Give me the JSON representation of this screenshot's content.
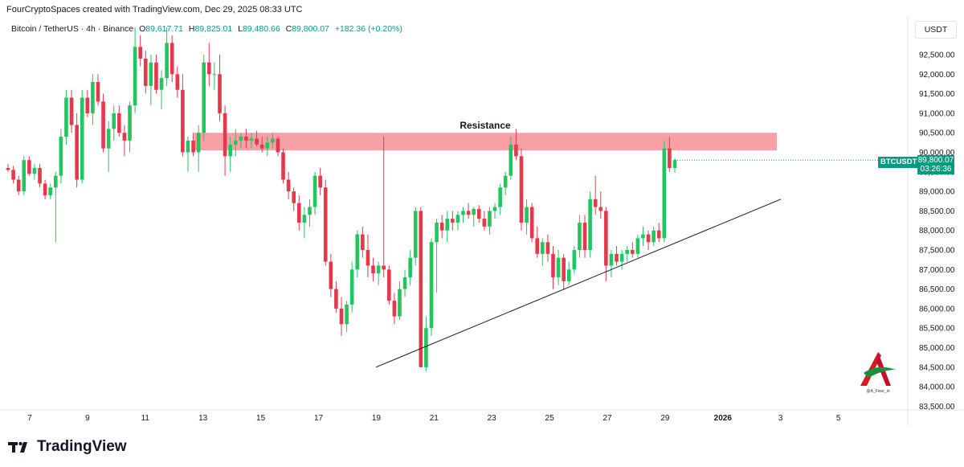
{
  "header": {
    "attribution": "FourCryptoSpaces created with TradingView.com, Dec 29, 2025 08:33 UTC"
  },
  "legend": {
    "symbol": "Bitcoin / TetherUS · 4h · Binance",
    "open_label": "O",
    "open": "89,617.71",
    "high_label": "H",
    "high": "89,825.01",
    "low_label": "L",
    "low": "89,480.66",
    "close_label": "C",
    "close": "89,800.07",
    "change": "+182.36 (+0.20%)"
  },
  "currency": "USDT",
  "price_tag": {
    "symbol": "BTCUSDT",
    "price": "89,800.07",
    "countdown": "03:26:36"
  },
  "brand": {
    "name": "TradingView"
  },
  "watermark": {
    "handle": "@A_Fixer_in"
  },
  "colors": {
    "up": "#089981",
    "down": "#f23645",
    "up_candle": "#22c55e",
    "down_candle": "#e5384b",
    "resistance": "#f7a1a6"
  },
  "chart_data": {
    "type": "candlestick",
    "yaxis_labels": [
      "92,500.00",
      "92,000.00",
      "91,500.00",
      "91,000.00",
      "90,500.00",
      "90,000.00",
      "89,500.00",
      "89,000.00",
      "88,500.00",
      "88,000.00",
      "87,500.00",
      "87,000.00",
      "86,500.00",
      "86,000.00",
      "85,500.00",
      "85,000.00",
      "84,500.00",
      "84,000.00",
      "83,500.00"
    ],
    "ylim": [
      83500,
      92800
    ],
    "xaxis_labels": [
      "7",
      "9",
      "11",
      "13",
      "15",
      "17",
      "19",
      "21",
      "23",
      "25",
      "27",
      "29",
      "2026",
      "3",
      "5"
    ],
    "annotations": [
      {
        "type": "zone",
        "label": "Resistance",
        "from": 90050,
        "to": 90500
      },
      {
        "type": "trendline",
        "start": [
          84500,
          "Dec 18"
        ],
        "end": [
          88800,
          "Jan 1"
        ]
      }
    ],
    "candles": [
      [
        89600,
        89700,
        89500,
        89550
      ],
      [
        89550,
        89650,
        89200,
        89300
      ],
      [
        89300,
        89400,
        88900,
        89000
      ],
      [
        89000,
        89900,
        88900,
        89800
      ],
      [
        89800,
        89900,
        89400,
        89450
      ],
      [
        89450,
        89700,
        89300,
        89600
      ],
      [
        89600,
        89700,
        89100,
        89200
      ],
      [
        89200,
        89300,
        88800,
        88900
      ],
      [
        88900,
        89200,
        88800,
        89100
      ],
      [
        89100,
        89500,
        87700,
        89400
      ],
      [
        89400,
        90600,
        89200,
        90400
      ],
      [
        90400,
        91600,
        90200,
        91400
      ],
      [
        91400,
        91600,
        90500,
        90700
      ],
      [
        90700,
        91000,
        89100,
        89300
      ],
      [
        89300,
        91600,
        89200,
        91400
      ],
      [
        91400,
        91600,
        90900,
        91000
      ],
      [
        91000,
        92000,
        90700,
        91800
      ],
      [
        91800,
        92000,
        91200,
        91300
      ],
      [
        91300,
        91500,
        90000,
        90100
      ],
      [
        90100,
        90800,
        89500,
        90600
      ],
      [
        90600,
        91200,
        90300,
        91000
      ],
      [
        91000,
        91200,
        90400,
        90500
      ],
      [
        90500,
        90700,
        89900,
        90300
      ],
      [
        90300,
        91300,
        90000,
        91200
      ],
      [
        91200,
        93200,
        91000,
        92700
      ],
      [
        92700,
        93000,
        92200,
        92400
      ],
      [
        92400,
        92600,
        91500,
        91700
      ],
      [
        91700,
        92500,
        91200,
        92300
      ],
      [
        92300,
        92500,
        91500,
        91600
      ],
      [
        91600,
        92100,
        91100,
        91900
      ],
      [
        91900,
        93200,
        91700,
        92800
      ],
      [
        92800,
        93000,
        91800,
        92000
      ],
      [
        92000,
        92200,
        91400,
        91600
      ],
      [
        91600,
        92000,
        89900,
        90000
      ],
      [
        90000,
        90400,
        89500,
        90300
      ],
      [
        90300,
        90500,
        89900,
        90000
      ],
      [
        90000,
        90700,
        89500,
        90500
      ],
      [
        90500,
        92500,
        90300,
        92300
      ],
      [
        92300,
        92800,
        91700,
        92000
      ],
      [
        92000,
        92300,
        91600,
        92000
      ],
      [
        92000,
        92500,
        90800,
        91000
      ],
      [
        91000,
        91200,
        89400,
        89900
      ],
      [
        89900,
        90400,
        89500,
        90200
      ],
      [
        90200,
        90600,
        89900,
        90300
      ],
      [
        90300,
        90500,
        90100,
        90400
      ],
      [
        90400,
        90600,
        90100,
        90300
      ],
      [
        90300,
        90500,
        90100,
        90350
      ],
      [
        90350,
        90550,
        90150,
        90200
      ],
      [
        90200,
        90400,
        90000,
        90100
      ],
      [
        90100,
        90400,
        89900,
        90250
      ],
      [
        90250,
        90500,
        90100,
        90350
      ],
      [
        90350,
        90400,
        89900,
        90000
      ],
      [
        90000,
        90100,
        89200,
        89300
      ],
      [
        89300,
        89500,
        88800,
        89000
      ],
      [
        89000,
        89100,
        88500,
        88700
      ],
      [
        88700,
        88900,
        88000,
        88200
      ],
      [
        88200,
        88600,
        87800,
        88400
      ],
      [
        88400,
        88800,
        88100,
        88600
      ],
      [
        88600,
        89500,
        88400,
        89400
      ],
      [
        89400,
        89600,
        88900,
        89100
      ],
      [
        89100,
        89300,
        87100,
        87200
      ],
      [
        87200,
        87400,
        86300,
        86500
      ],
      [
        86500,
        86700,
        85900,
        86000
      ],
      [
        86000,
        86300,
        85300,
        85600
      ],
      [
        85600,
        86200,
        85400,
        86100
      ],
      [
        86100,
        87200,
        85900,
        87000
      ],
      [
        87000,
        88000,
        86800,
        87900
      ],
      [
        87900,
        88100,
        87300,
        87500
      ],
      [
        87500,
        87900,
        86800,
        87100
      ],
      [
        87100,
        87300,
        86700,
        86900
      ],
      [
        86900,
        87200,
        86600,
        87100
      ],
      [
        87100,
        90400,
        86800,
        87000
      ],
      [
        87000,
        87100,
        86100,
        86200
      ],
      [
        86200,
        86400,
        85600,
        85800
      ],
      [
        85800,
        86700,
        85700,
        86500
      ],
      [
        86500,
        87000,
        86300,
        86800
      ],
      [
        86800,
        87500,
        86600,
        87300
      ],
      [
        87300,
        88600,
        87100,
        88500
      ],
      [
        88500,
        88600,
        84500,
        84500
      ],
      [
        84500,
        85800,
        84400,
        85500
      ],
      [
        85500,
        87800,
        85300,
        87700
      ],
      [
        87700,
        88300,
        86400,
        88200
      ],
      [
        88200,
        88400,
        87800,
        88000
      ],
      [
        88000,
        88500,
        87700,
        88300
      ],
      [
        88300,
        88500,
        88000,
        88200
      ],
      [
        88200,
        88500,
        88000,
        88400
      ],
      [
        88400,
        88600,
        88200,
        88500
      ],
      [
        88500,
        88700,
        88300,
        88400
      ],
      [
        88400,
        88600,
        88100,
        88550
      ],
      [
        88550,
        88650,
        88200,
        88300
      ],
      [
        88300,
        88500,
        88000,
        88100
      ],
      [
        88100,
        88600,
        87900,
        88500
      ],
      [
        88500,
        88700,
        88300,
        88600
      ],
      [
        88600,
        89200,
        88400,
        89100
      ],
      [
        89100,
        89500,
        88900,
        89400
      ],
      [
        89400,
        90400,
        89300,
        90200
      ],
      [
        90200,
        90600,
        89800,
        89900
      ],
      [
        89900,
        90100,
        88000,
        88200
      ],
      [
        88200,
        88800,
        87900,
        88600
      ],
      [
        88600,
        88700,
        87700,
        87800
      ],
      [
        87800,
        88100,
        87300,
        87400
      ],
      [
        87400,
        87800,
        87100,
        87700
      ],
      [
        87700,
        87900,
        87200,
        87400
      ],
      [
        87400,
        87600,
        86500,
        86800
      ],
      [
        86800,
        87500,
        86600,
        87300
      ],
      [
        87300,
        87400,
        86500,
        86700
      ],
      [
        86700,
        87200,
        86600,
        87000
      ],
      [
        87000,
        87600,
        86900,
        87500
      ],
      [
        87500,
        88400,
        87300,
        88200
      ],
      [
        88200,
        88400,
        87300,
        87500
      ],
      [
        87500,
        89000,
        87300,
        88800
      ],
      [
        88800,
        89400,
        88400,
        88600
      ],
      [
        88600,
        89000,
        88300,
        88500
      ],
      [
        88500,
        88600,
        86700,
        87100
      ],
      [
        87100,
        87500,
        86800,
        87400
      ],
      [
        87400,
        87600,
        87100,
        87200
      ],
      [
        87200,
        87500,
        87000,
        87400
      ],
      [
        87400,
        87600,
        87200,
        87500
      ],
      [
        87500,
        87700,
        87300,
        87400
      ],
      [
        87400,
        87900,
        87300,
        87800
      ],
      [
        87800,
        88100,
        87600,
        87900
      ],
      [
        87900,
        88000,
        87500,
        87700
      ],
      [
        87700,
        88100,
        87600,
        88000
      ],
      [
        88000,
        88200,
        87700,
        87800
      ],
      [
        87800,
        90300,
        87700,
        90100
      ],
      [
        90100,
        90400,
        89500,
        89600
      ],
      [
        89600,
        89850,
        89480,
        89800
      ]
    ]
  }
}
